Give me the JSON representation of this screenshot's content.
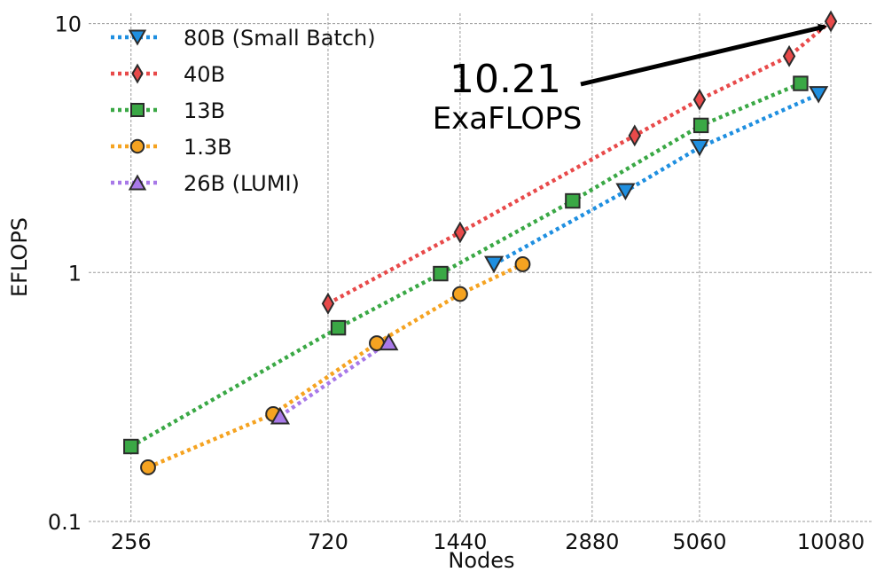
{
  "chart_data": {
    "type": "scatter",
    "xlabel": "Nodes",
    "ylabel": "EFLOPS",
    "x_scale": "log",
    "y_scale": "log",
    "xlim": [
      205,
      12600
    ],
    "ylim": [
      0.1,
      11
    ],
    "x_ticks": [
      256,
      720,
      1440,
      2880,
      5060,
      10080
    ],
    "x_tick_labels": [
      "256",
      "720",
      "1440",
      "2880",
      "5060",
      "10080"
    ],
    "y_ticks": [
      0.1,
      1,
      10
    ],
    "y_tick_labels": [
      "0.1",
      "1",
      "10"
    ],
    "grid": true,
    "legend_position": "top-left",
    "series": [
      {
        "name": "80B (Small Batch)",
        "color": "#1f8fe0",
        "marker": "triangle-down",
        "x": [
          1720,
          3430,
          5060,
          9450
        ],
        "y": [
          1.08,
          2.12,
          3.18,
          5.2
        ]
      },
      {
        "name": "40B",
        "color": "#e84a4a",
        "marker": "diamond",
        "x": [
          720,
          1440,
          3600,
          5060,
          8100,
          10080
        ],
        "y": [
          0.75,
          1.45,
          3.55,
          4.95,
          7.4,
          10.21
        ]
      },
      {
        "name": "13B",
        "color": "#3aa845",
        "marker": "square",
        "x": [
          256,
          760,
          1300,
          2600,
          5100,
          8600
        ],
        "y": [
          0.2,
          0.6,
          0.99,
          1.94,
          3.9,
          5.75
        ]
      },
      {
        "name": "1.3B",
        "color": "#f5a321",
        "marker": "circle",
        "x": [
          280,
          540,
          930,
          1440,
          2000
        ],
        "y": [
          0.165,
          0.27,
          0.52,
          0.82,
          1.08
        ]
      },
      {
        "name": "26B (LUMI)",
        "color": "#a879e8",
        "marker": "triangle-up",
        "x": [
          560,
          990
        ],
        "y": [
          0.265,
          0.525
        ]
      }
    ],
    "annotation": {
      "value": "10.21",
      "unit": "ExaFLOPS"
    }
  }
}
